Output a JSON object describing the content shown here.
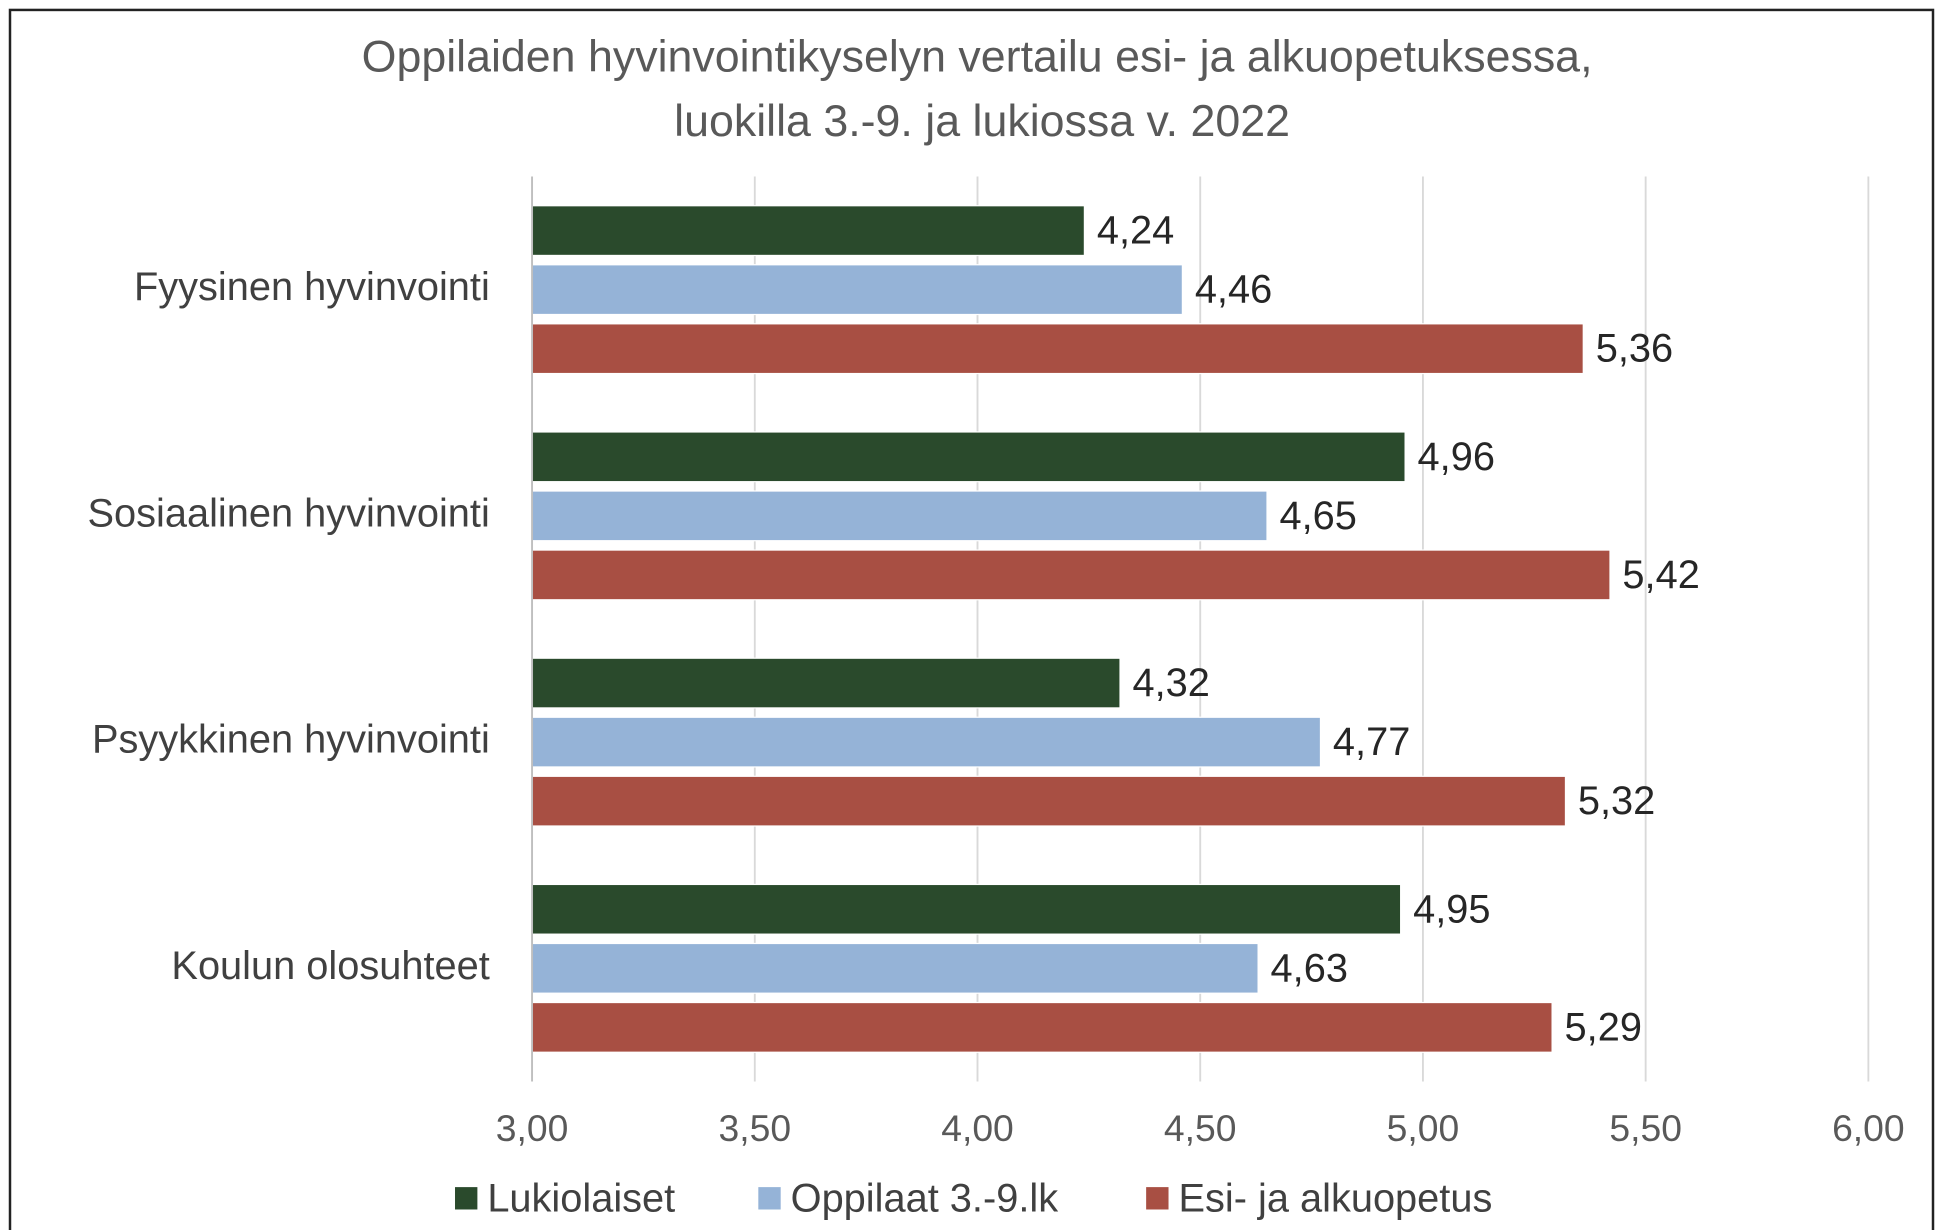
{
  "chart_data": {
    "type": "hbar",
    "title": [
      "Oppilaiden hyvinvointikyselyn vertailu esi- ja alkuopetuksessa,",
      "luokilla 3.-9. ja lukiossa v. 2022"
    ],
    "categories": [
      "Fyysinen hyvinvointi",
      "Sosiaalinen hyvinvointi",
      "Psyykkinen hyvinvointi",
      "Koulun olosuhteet"
    ],
    "series": [
      {
        "name": "Lukiolaiset",
        "color": "#2a4a2c",
        "values": [
          4.24,
          4.96,
          4.32,
          4.95
        ],
        "value_labels": [
          "4,24",
          "4,96",
          "4,32",
          "4,95"
        ]
      },
      {
        "name": "Oppilaat 3.-9.lk",
        "color": "#95b3d7",
        "values": [
          4.46,
          4.65,
          4.77,
          4.63
        ],
        "value_labels": [
          "4,46",
          "4,65",
          "4,77",
          "4,63"
        ]
      },
      {
        "name": "Esi- ja alkuopetus",
        "color": "#a84f43",
        "values": [
          5.36,
          5.42,
          5.32,
          5.29
        ],
        "value_labels": [
          "5,36",
          "5,42",
          "5,32",
          "5,29"
        ]
      }
    ],
    "xlim": [
      3,
      6
    ],
    "xticks": [
      {
        "value": 3,
        "label": "3,00"
      },
      {
        "value": 3.5,
        "label": "3,50"
      },
      {
        "value": 4,
        "label": "4,00"
      },
      {
        "value": 4.5,
        "label": "4,50"
      },
      {
        "value": 5,
        "label": "5,00"
      },
      {
        "value": 5.5,
        "label": "5,50"
      },
      {
        "value": 6,
        "label": "6,00"
      }
    ],
    "grid": true,
    "legend": "bottom"
  }
}
